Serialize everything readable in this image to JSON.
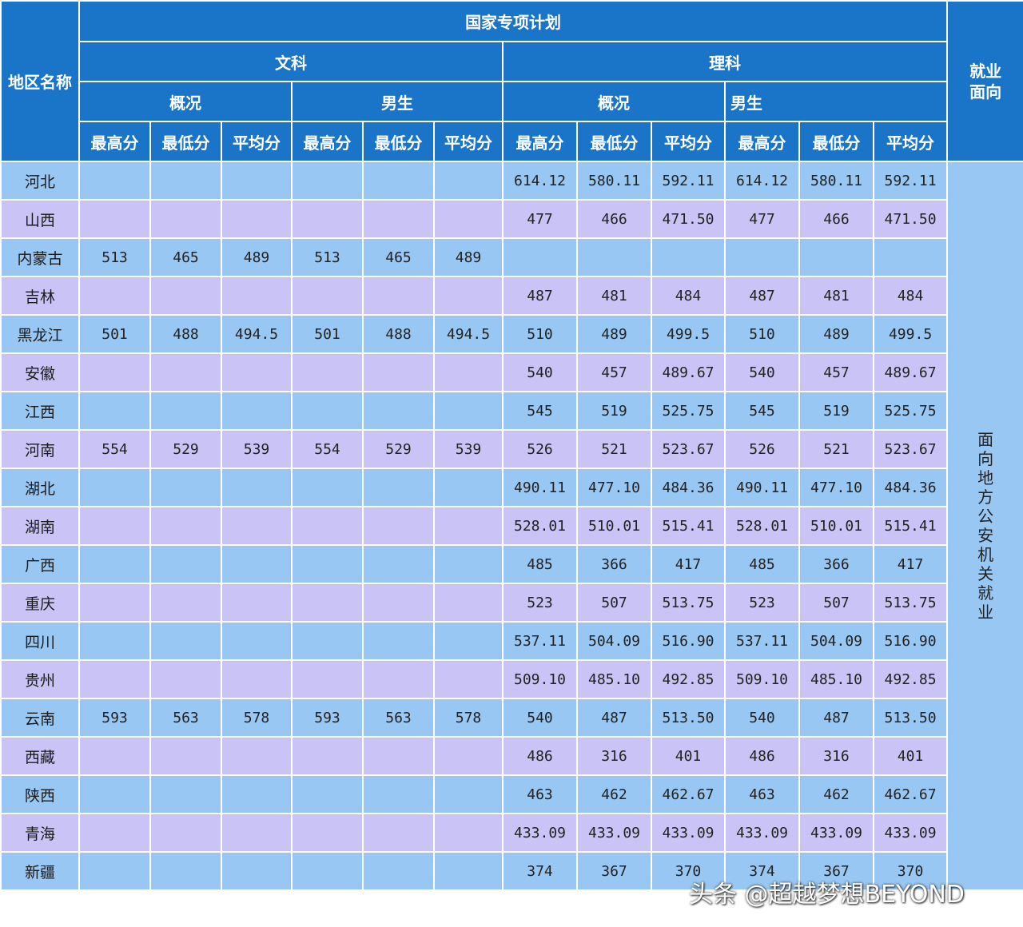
{
  "title": "国家专项计划",
  "region_header": "地区名称",
  "sections": {
    "wen": "文科",
    "li": "理科"
  },
  "subgroups": {
    "overview": "概况",
    "male": "男生"
  },
  "columns": [
    "最高分",
    "最低分",
    "平均分"
  ],
  "employment_header": "就业面向",
  "employment_value": "面向地方公安机关就业",
  "rows": [
    {
      "region": "河北",
      "w": [
        "",
        "",
        "",
        "",
        "",
        ""
      ],
      "l": [
        "614.12",
        "580.11",
        "592.11",
        "614.12",
        "580.11",
        "592.11"
      ]
    },
    {
      "region": "山西",
      "w": [
        "",
        "",
        "",
        "",
        "",
        ""
      ],
      "l": [
        "477",
        "466",
        "471.50",
        "477",
        "466",
        "471.50"
      ]
    },
    {
      "region": "内蒙古",
      "w": [
        "513",
        "465",
        "489",
        "513",
        "465",
        "489"
      ],
      "l": [
        "",
        "",
        "",
        "",
        "",
        ""
      ]
    },
    {
      "region": "吉林",
      "w": [
        "",
        "",
        "",
        "",
        "",
        ""
      ],
      "l": [
        "487",
        "481",
        "484",
        "487",
        "481",
        "484"
      ]
    },
    {
      "region": "黑龙江",
      "w": [
        "501",
        "488",
        "494.5",
        "501",
        "488",
        "494.5"
      ],
      "l": [
        "510",
        "489",
        "499.5",
        "510",
        "489",
        "499.5"
      ]
    },
    {
      "region": "安徽",
      "w": [
        "",
        "",
        "",
        "",
        "",
        ""
      ],
      "l": [
        "540",
        "457",
        "489.67",
        "540",
        "457",
        "489.67"
      ]
    },
    {
      "region": "江西",
      "w": [
        "",
        "",
        "",
        "",
        "",
        ""
      ],
      "l": [
        "545",
        "519",
        "525.75",
        "545",
        "519",
        "525.75"
      ]
    },
    {
      "region": "河南",
      "w": [
        "554",
        "529",
        "539",
        "554",
        "529",
        "539"
      ],
      "l": [
        "526",
        "521",
        "523.67",
        "526",
        "521",
        "523.67"
      ]
    },
    {
      "region": "湖北",
      "w": [
        "",
        "",
        "",
        "",
        "",
        ""
      ],
      "l": [
        "490.11",
        "477.10",
        "484.36",
        "490.11",
        "477.10",
        "484.36"
      ]
    },
    {
      "region": "湖南",
      "w": [
        "",
        "",
        "",
        "",
        "",
        ""
      ],
      "l": [
        "528.01",
        "510.01",
        "515.41",
        "528.01",
        "510.01",
        "515.41"
      ]
    },
    {
      "region": "广西",
      "w": [
        "",
        "",
        "",
        "",
        "",
        ""
      ],
      "l": [
        "485",
        "366",
        "417",
        "485",
        "366",
        "417"
      ]
    },
    {
      "region": "重庆",
      "w": [
        "",
        "",
        "",
        "",
        "",
        ""
      ],
      "l": [
        "523",
        "507",
        "513.75",
        "523",
        "507",
        "513.75"
      ]
    },
    {
      "region": "四川",
      "w": [
        "",
        "",
        "",
        "",
        "",
        ""
      ],
      "l": [
        "537.11",
        "504.09",
        "516.90",
        "537.11",
        "504.09",
        "516.90"
      ]
    },
    {
      "region": "贵州",
      "w": [
        "",
        "",
        "",
        "",
        "",
        ""
      ],
      "l": [
        "509.10",
        "485.10",
        "492.85",
        "509.10",
        "485.10",
        "492.85"
      ]
    },
    {
      "region": "云南",
      "w": [
        "593",
        "563",
        "578",
        "593",
        "563",
        "578"
      ],
      "l": [
        "540",
        "487",
        "513.50",
        "540",
        "487",
        "513.50"
      ]
    },
    {
      "region": "西藏",
      "w": [
        "",
        "",
        "",
        "",
        "",
        ""
      ],
      "l": [
        "486",
        "316",
        "401",
        "486",
        "316",
        "401"
      ]
    },
    {
      "region": "陕西",
      "w": [
        "",
        "",
        "",
        "",
        "",
        ""
      ],
      "l": [
        "463",
        "462",
        "462.67",
        "463",
        "462",
        "462.67"
      ]
    },
    {
      "region": "青海",
      "w": [
        "",
        "",
        "",
        "",
        "",
        ""
      ],
      "l": [
        "433.09",
        "433.09",
        "433.09",
        "433.09",
        "433.09",
        "433.09"
      ]
    },
    {
      "region": "新疆",
      "w": [
        "",
        "",
        "",
        "",
        "",
        ""
      ],
      "l": [
        "374",
        "367",
        "370",
        "374",
        "367",
        "370"
      ]
    }
  ],
  "watermark": "头条 @超越梦想BEYOND"
}
